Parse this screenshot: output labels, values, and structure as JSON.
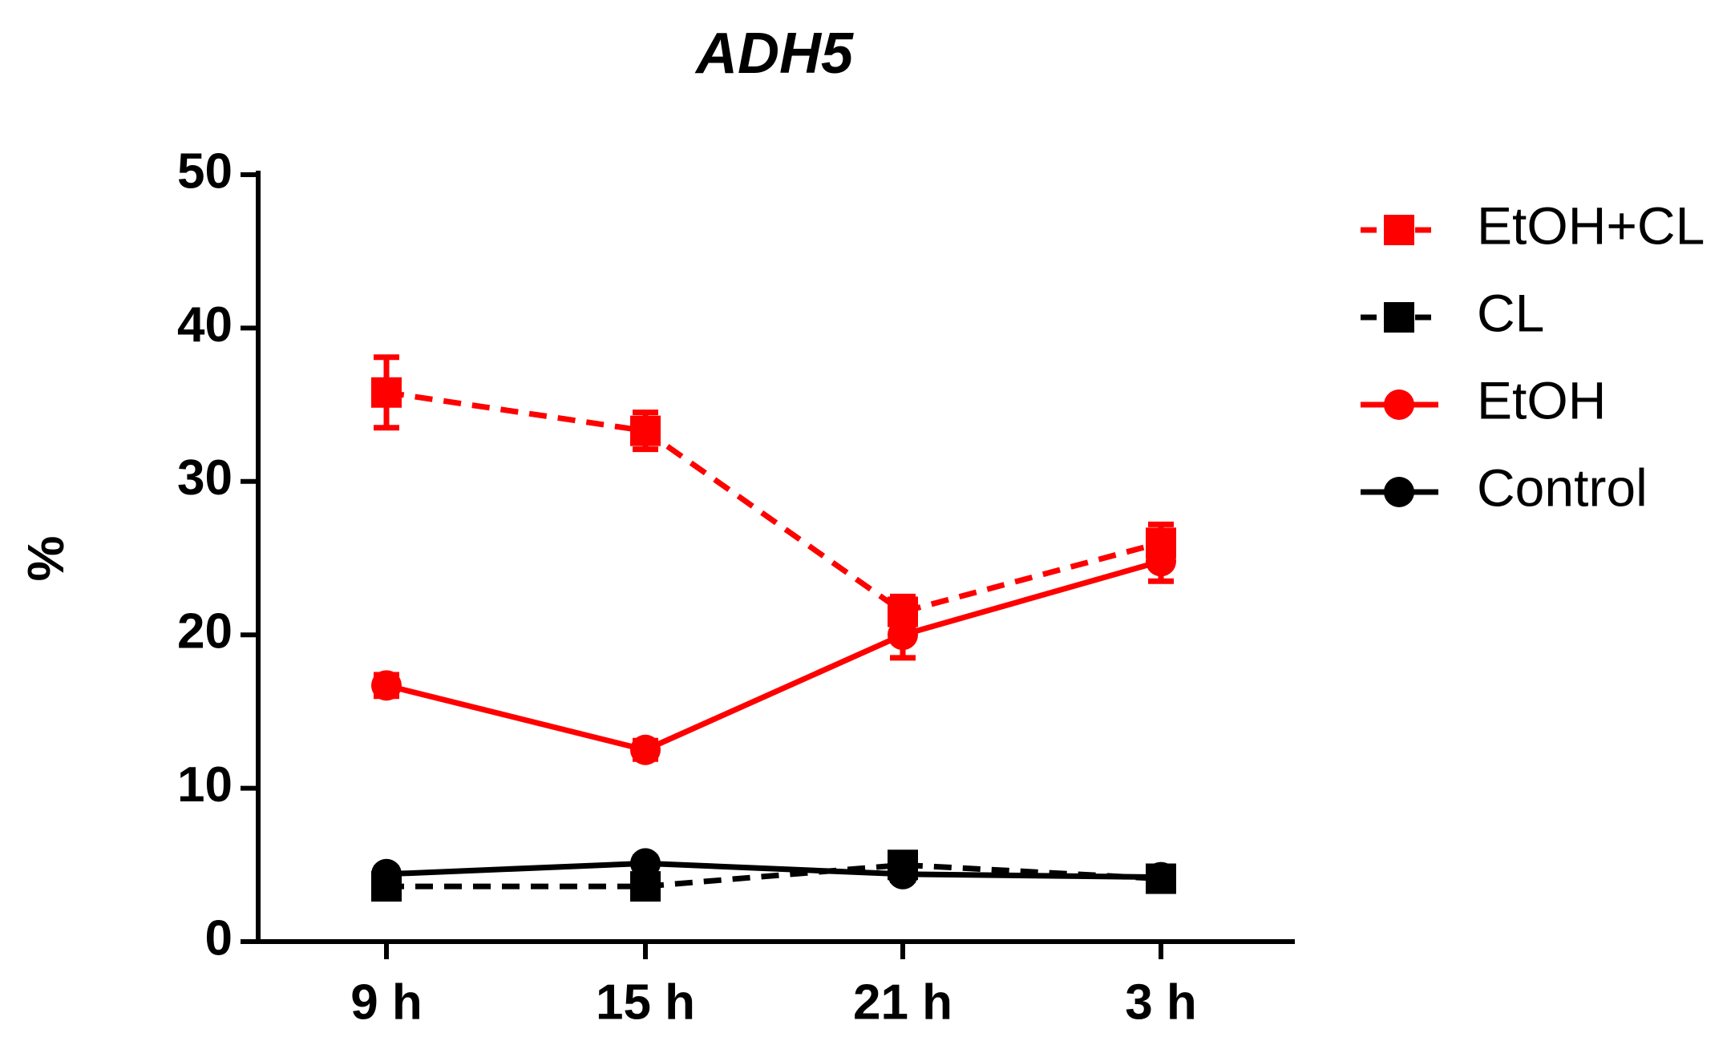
{
  "chart_data": {
    "type": "line",
    "title": "ADH5",
    "y_label": "%",
    "categories": [
      "9 h",
      "15 h",
      "21 h",
      "3 h"
    ],
    "ylim": [
      0,
      50
    ],
    "yticks": [
      0,
      10,
      20,
      30,
      40,
      50
    ],
    "series": [
      {
        "name": "EtOH+CL",
        "color": "#ff0000",
        "dashed": true,
        "marker": "square",
        "values": [
          35.8,
          33.3,
          21.5,
          26
        ],
        "errors": [
          2.3,
          1.2,
          1,
          1.2
        ]
      },
      {
        "name": "CL",
        "color": "#000000",
        "dashed": true,
        "marker": "square",
        "values": [
          3.6,
          3.6,
          5.0,
          4.1
        ],
        "errors": [
          0.5,
          0.4,
          0.6,
          0.4
        ]
      },
      {
        "name": "EtOH",
        "color": "#ff0000",
        "dashed": false,
        "marker": "circle",
        "values": [
          16.7,
          12.5,
          20,
          24.8
        ],
        "errors": [
          0.7,
          0.6,
          1.5,
          1.3
        ]
      },
      {
        "name": "Control",
        "color": "#000000",
        "dashed": false,
        "marker": "circle",
        "values": [
          4.4,
          5.1,
          4.4,
          4.2
        ],
        "errors": [
          0.4,
          0.4,
          0.4,
          0.3
        ]
      }
    ]
  }
}
